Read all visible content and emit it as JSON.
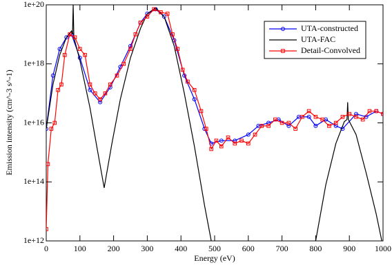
{
  "chart_data": {
    "type": "line",
    "x_label": "Energy (eV)",
    "y_label": "Emission intensity (cm^-3 s^-1)",
    "log_y": true,
    "legend": "upper right",
    "xlim": [
      0,
      1000
    ],
    "xticks": [
      0,
      100,
      200,
      300,
      400,
      500,
      600,
      700,
      800,
      900,
      1000
    ],
    "ylim": [
      1000000000000.0,
      1e+20
    ],
    "yticks": [
      {
        "value": 1000000000000.0,
        "label": "1e+12"
      },
      {
        "value": 100000000000000.0,
        "label": "1e+14"
      },
      {
        "value": 1e+16,
        "label": "1e+16"
      },
      {
        "value": 1e+18,
        "label": "1e+18"
      },
      {
        "value": 1e+20,
        "label": "1e+20"
      }
    ],
    "series": [
      {
        "name": "UTA-constructed",
        "color": "#0000ff",
        "marker": "circle",
        "x": [
          0,
          20,
          40,
          60,
          75,
          100,
          130,
          160,
          190,
          220,
          250,
          280,
          300,
          325,
          350,
          380,
          410,
          440,
          470,
          490,
          520,
          560,
          600,
          630,
          660,
          690,
          720,
          750,
          780,
          800,
          830,
          860,
          880,
          920,
          950,
          980,
          1000
        ],
        "values": [
          6300000000000000.0,
          4e+17,
          3.2e+18,
          7.9e+18,
          1e+19,
          1.6e+18,
          1.3e+17,
          5e+16,
          1.6e+17,
          7.9e+17,
          4e+18,
          2.5e+19,
          5e+19,
          7.1e+19,
          4e+19,
          6.3e+18,
          4e+17,
          6.3e+16,
          6300000000000000.0,
          2000000000000000.0,
          2500000000000000.0,
          2500000000000000.0,
          4000000000000000.0,
          7900000000000000.0,
          1e+16,
          1.3e+16,
          7900000000000000.0,
          1.6e+16,
          1.6e+16,
          7900000000000000.0,
          1.3e+16,
          7900000000000000.0,
          6300000000000000.0,
          2e+16,
          1.6e+16,
          2.5e+16,
          2e+16
        ]
      },
      {
        "name": "UTA-FAC",
        "color": "#000000",
        "marker": "none",
        "x": [
          0,
          20,
          40,
          60,
          75,
          78,
          80,
          82,
          100,
          130,
          150,
          172,
          195,
          220,
          250,
          280,
          300,
          325,
          350,
          380,
          410,
          440,
          470,
          490,
          500,
          650,
          790,
          800,
          830,
          860,
          885,
          893,
          895,
          897,
          920,
          950,
          980,
          1000
        ],
        "values": [
          6300000000000000.0,
          2e+17,
          2e+18,
          7.9e+18,
          1.3e+19,
          1e+19,
          1e+20,
          7.9e+18,
          1.3e+18,
          3.2e+16,
          1600000000000000.0,
          63000000000000.0,
          2000000000000000.0,
          6.3e+16,
          1.6e+18,
          1.6e+19,
          5e+19,
          7.9e+19,
          4e+19,
          4e+18,
          1e+17,
          1600000000000000.0,
          16000000000000.0,
          1000000000000.0,
          320000000000.0,
          null,
          320000000000.0,
          1000000000000.0,
          79000000000000.0,
          2000000000000000.0,
          1.1e+16,
          1.3e+16,
          5e+16,
          1.3e+16,
          4000000000000000.0,
          200000000000000.0,
          7900000000000.0,
          630000000000.0
        ]
      },
      {
        "name": "Detail-Convolved",
        "color": "#ff0000",
        "marker": "square",
        "x": [
          0,
          5,
          15,
          25,
          35,
          45,
          55,
          70,
          85,
          100,
          115,
          130,
          145,
          160,
          175,
          190,
          210,
          230,
          250,
          265,
          280,
          300,
          320,
          340,
          360,
          375,
          390,
          405,
          420,
          440,
          460,
          475,
          490,
          505,
          520,
          540,
          560,
          580,
          600,
          620,
          640,
          660,
          680,
          700,
          720,
          740,
          760,
          780,
          800,
          820,
          840,
          860,
          880,
          900,
          920,
          940,
          960,
          980,
          1000
        ],
        "values": [
          2500000000000.0,
          400000000000000.0,
          6300000000000000.0,
          1e+16,
          1.3e+17,
          2e+17,
          2e+18,
          1e+19,
          7.9e+18,
          3.2e+18,
          2e+18,
          2e+17,
          1e+17,
          6.3e+16,
          1e+17,
          2e+17,
          4e+17,
          1e+18,
          3.2e+18,
          1e+19,
          2.5e+19,
          4e+19,
          7.1e+19,
          5.6e+19,
          5e+19,
          1e+19,
          3.2e+18,
          6.3e+17,
          2.5e+17,
          1.3e+17,
          2.5e+16,
          6300000000000000.0,
          1300000000000000.0,
          2500000000000000.0,
          1600000000000000.0,
          3200000000000000.0,
          2000000000000000.0,
          2500000000000000.0,
          2000000000000000.0,
          4000000000000000.0,
          7900000000000000.0,
          7900000000000000.0,
          1.3e+16,
          1e+16,
          1e+16,
          6300000000000000.0,
          1.6e+16,
          2.5e+16,
          1.6e+16,
          1.3e+16,
          7900000000000000.0,
          1e+16,
          1.6e+16,
          2e+16,
          1.6e+16,
          1.3e+16,
          2.5e+16,
          2.5e+16,
          2e+16
        ]
      }
    ]
  }
}
